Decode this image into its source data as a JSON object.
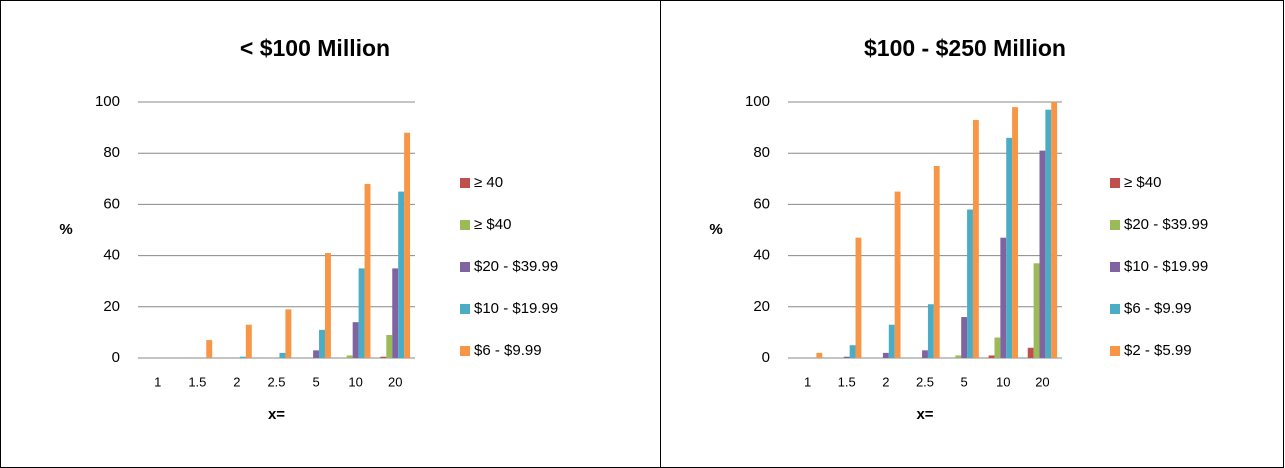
{
  "chart_data": [
    {
      "type": "bar",
      "title": "< $100 Million",
      "x_label": "x=",
      "y_label": "%",
      "categories": [
        "1",
        "1.5",
        "2",
        "2.5",
        "5",
        "10",
        "20"
      ],
      "ylim": [
        0,
        100
      ],
      "yticks": [
        0,
        20,
        40,
        60,
        80,
        100
      ],
      "grid": true,
      "legend": "right",
      "series": [
        {
          "name": "≥ 40",
          "color": "#c0504d",
          "values": [
            0,
            0,
            0,
            0,
            0,
            0,
            0.5
          ]
        },
        {
          "name": "≥ $40",
          "color": "#9bbb59",
          "values": [
            0,
            0,
            0,
            0,
            0,
            1,
            9
          ]
        },
        {
          "name": "$20 - $39.99",
          "color": "#8064a2",
          "values": [
            0,
            0,
            0,
            0,
            3,
            14,
            35
          ]
        },
        {
          "name": "$10 - $19.99",
          "color": "#4bacc6",
          "values": [
            0,
            0,
            0.5,
            2,
            11,
            35,
            65
          ]
        },
        {
          "name": "$6 - $9.99",
          "color": "#f79646",
          "values": [
            0,
            7,
            13,
            19,
            41,
            68,
            88
          ]
        }
      ]
    },
    {
      "type": "bar",
      "title": "$100 - $250 Million",
      "x_label": "x=",
      "y_label": "%",
      "categories": [
        "1",
        "1.5",
        "2",
        "2.5",
        "5",
        "10",
        "20"
      ],
      "ylim": [
        0,
        100
      ],
      "yticks": [
        0,
        20,
        40,
        60,
        80,
        100
      ],
      "grid": true,
      "legend": "right",
      "series": [
        {
          "name": "≥ $40",
          "color": "#c0504d",
          "values": [
            0,
            0,
            0,
            0,
            0,
            1,
            4
          ]
        },
        {
          "name": "$20 - $39.99",
          "color": "#9bbb59",
          "values": [
            0,
            0,
            0,
            0,
            1,
            8,
            37
          ]
        },
        {
          "name": "$10 - $19.99",
          "color": "#8064a2",
          "values": [
            0,
            0.5,
            2,
            3,
            16,
            47,
            81
          ]
        },
        {
          "name": "$6 - $9.99",
          "color": "#4bacc6",
          "values": [
            0,
            5,
            13,
            21,
            58,
            86,
            97
          ]
        },
        {
          "name": "$2 - $5.99",
          "color": "#f79646",
          "values": [
            2,
            47,
            65,
            75,
            93,
            98,
            100
          ]
        }
      ]
    }
  ]
}
